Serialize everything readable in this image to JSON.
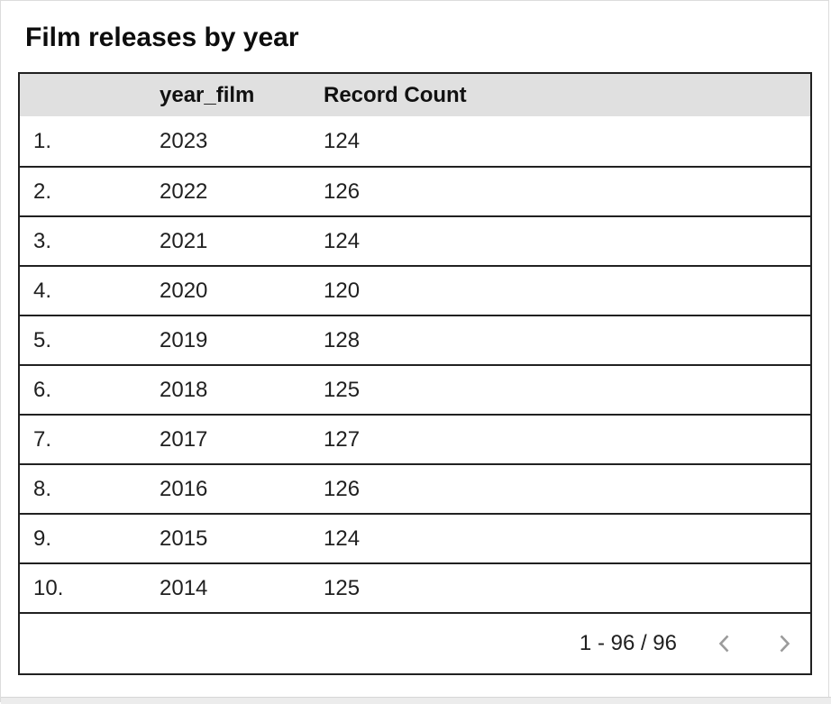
{
  "title": "Film releases by year",
  "table": {
    "headers": [
      "",
      "year_film",
      "Record Count"
    ],
    "rows": [
      {
        "index": "1.",
        "year": "2023",
        "count": "124"
      },
      {
        "index": "2.",
        "year": "2022",
        "count": "126"
      },
      {
        "index": "3.",
        "year": "2021",
        "count": "124"
      },
      {
        "index": "4.",
        "year": "2020",
        "count": "120"
      },
      {
        "index": "5.",
        "year": "2019",
        "count": "128"
      },
      {
        "index": "6.",
        "year": "2018",
        "count": "125"
      },
      {
        "index": "7.",
        "year": "2017",
        "count": "127"
      },
      {
        "index": "8.",
        "year": "2016",
        "count": "126"
      },
      {
        "index": "9.",
        "year": "2015",
        "count": "124"
      },
      {
        "index": "10.",
        "year": "2014",
        "count": "125"
      }
    ]
  },
  "pagination": {
    "range_label": "1 - 96 / 96",
    "prev_icon": "chevron-left",
    "next_icon": "chevron-right"
  },
  "chart_data": {
    "type": "table",
    "title": "Film releases by year",
    "columns": [
      "year_film",
      "Record Count"
    ],
    "rows": [
      [
        2023,
        124
      ],
      [
        2022,
        126
      ],
      [
        2021,
        124
      ],
      [
        2020,
        120
      ],
      [
        2019,
        128
      ],
      [
        2018,
        125
      ],
      [
        2017,
        127
      ],
      [
        2016,
        126
      ],
      [
        2015,
        124
      ],
      [
        2014,
        125
      ]
    ],
    "pagination": "1 - 96 / 96"
  },
  "colors": {
    "header_bg": "#e0e0e0",
    "table_border": "#212121",
    "text": "#1f1f1f",
    "chevron": "#9b9b9b",
    "canvas_border": "#dcdcdc"
  }
}
